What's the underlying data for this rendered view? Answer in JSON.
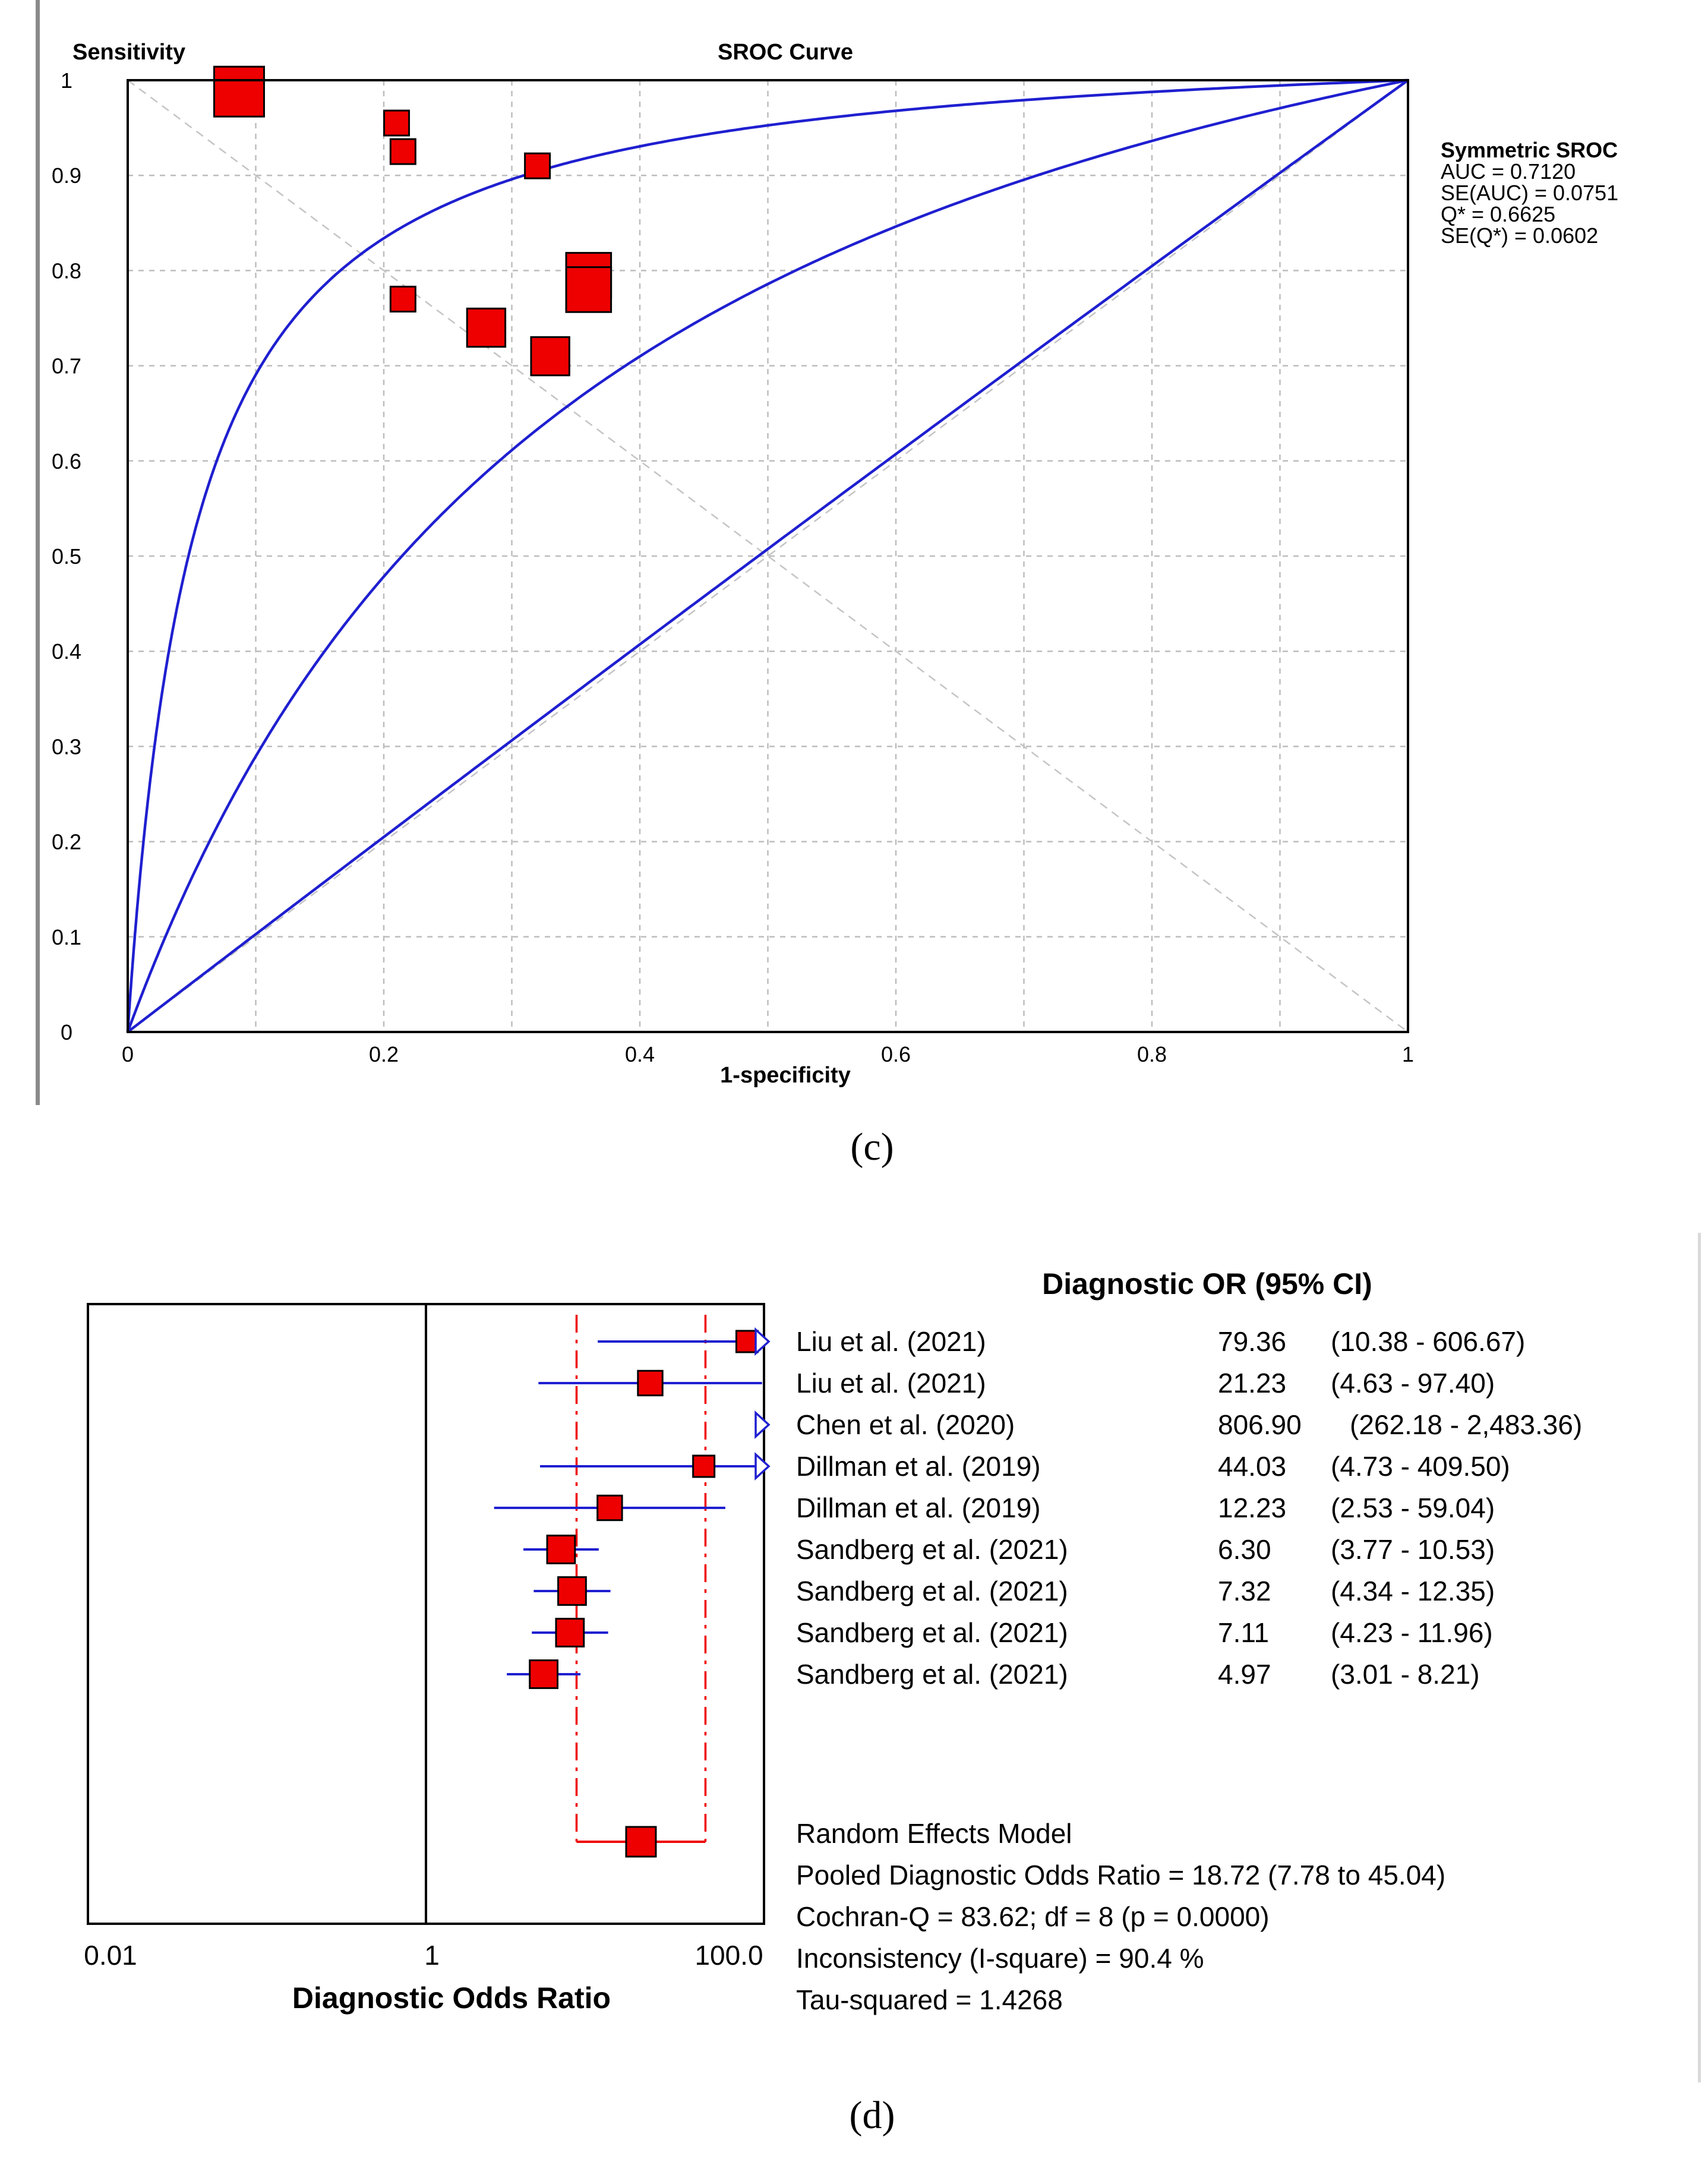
{
  "chart_data": [
    {
      "type": "scatter",
      "title": "SROC Curve",
      "ylabel": "Sensitivity",
      "xlabel": "1-specificity",
      "xlim": [
        0,
        1
      ],
      "ylim": [
        0,
        1
      ],
      "grid": true,
      "xticks": [
        "0",
        "0.2",
        "0.4",
        "0.6",
        "0.8",
        "1"
      ],
      "yticks": [
        "0",
        "0.1",
        "0.2",
        "0.3",
        "0.4",
        "0.5",
        "0.6",
        "0.7",
        "0.8",
        "0.9",
        "1"
      ],
      "points": [
        {
          "x": 0.087,
          "y": 0.988,
          "weight": 3
        },
        {
          "x": 0.21,
          "y": 0.955,
          "weight": 1.5
        },
        {
          "x": 0.215,
          "y": 0.925,
          "weight": 1.5
        },
        {
          "x": 0.32,
          "y": 0.91,
          "weight": 1.5
        },
        {
          "x": 0.215,
          "y": 0.77,
          "weight": 1.5
        },
        {
          "x": 0.28,
          "y": 0.74,
          "weight": 2.3
        },
        {
          "x": 0.33,
          "y": 0.71,
          "weight": 2.3
        },
        {
          "x": 0.36,
          "y": 0.795,
          "weight": 2.7
        },
        {
          "x": 0.36,
          "y": 0.78,
          "weight": 2.7
        }
      ],
      "curves": [
        {
          "name": "Upper CI",
          "log_dor": 3.0
        },
        {
          "name": "Symmetric SROC",
          "log_dor": 1.3
        },
        {
          "name": "Lower CI",
          "log_dor": 0.03
        }
      ],
      "annotation": {
        "heading": "Symmetric SROC",
        "lines": [
          "AUC = 0.7120",
          "SE(AUC) = 0.0751",
          "Q* = 0.6625",
          "SE(Q*) = 0.0602"
        ]
      },
      "caption": "(c)"
    },
    {
      "type": "forest",
      "xlabel": "Diagnostic Odds Ratio",
      "header": "Diagnostic OR (95% CI)",
      "xscale": "log",
      "xlim": [
        0.01,
        100
      ],
      "xticks": [
        "0.01",
        "1",
        "100.0"
      ],
      "studies": [
        {
          "name": "Liu et al. (2021)",
          "or": 79.36,
          "lo": 10.38,
          "hi": 606.67,
          "or_text": "79.36",
          "ci_text": "(10.38 - 606.67)",
          "weight": 2.0
        },
        {
          "name": "Liu et al. (2021)",
          "or": 21.23,
          "lo": 4.63,
          "hi": 97.4,
          "or_text": "21.23",
          "ci_text": "(4.63 - 97.40)",
          "weight": 2.3
        },
        {
          "name": "Chen et al. (2020)",
          "or": 806.9,
          "lo": 262.18,
          "hi": 2483.36,
          "or_text": "806.90",
          "ci_text": "(262.18 - 2,483.36)",
          "weight": 2.0
        },
        {
          "name": "Dillman et al. (2019)",
          "or": 44.03,
          "lo": 4.73,
          "hi": 409.5,
          "or_text": "44.03",
          "ci_text": "(4.73 - 409.50)",
          "weight": 2.0
        },
        {
          "name": "Dillman et al. (2019)",
          "or": 12.23,
          "lo": 2.53,
          "hi": 59.04,
          "or_text": "12.23",
          "ci_text": "(2.53 - 59.04)",
          "weight": 2.3
        },
        {
          "name": "Sandberg et al. (2021)",
          "or": 6.3,
          "lo": 3.77,
          "hi": 10.53,
          "or_text": "6.30",
          "ci_text": "(3.77 - 10.53)",
          "weight": 2.6
        },
        {
          "name": "Sandberg et al. (2021)",
          "or": 7.32,
          "lo": 4.34,
          "hi": 12.35,
          "or_text": "7.32",
          "ci_text": "(4.34 - 12.35)",
          "weight": 2.6
        },
        {
          "name": "Sandberg et al. (2021)",
          "or": 7.11,
          "lo": 4.23,
          "hi": 11.96,
          "or_text": "7.11",
          "ci_text": "(4.23 - 11.96)",
          "weight": 2.6
        },
        {
          "name": "Sandberg et al. (2021)",
          "or": 4.97,
          "lo": 3.01,
          "hi": 8.21,
          "or_text": "4.97",
          "ci_text": "(3.01 - 8.21)",
          "weight": 2.6
        }
      ],
      "pooled": {
        "or": 18.72,
        "lo": 7.78,
        "hi": 45.04
      },
      "summary": {
        "model": "Random Effects Model",
        "pooled_text": "Pooled Diagnostic Odds Ratio = 18.72 (7.78 to 45.04)",
        "cochran_text": "Cochran-Q = 83.62; df = 8 (p = 0.0000)",
        "inconsistency_text": "Inconsistency (I-square) = 90.4 %",
        "tau_text": "Tau-squared = 1.4268"
      },
      "caption": "(d)"
    }
  ]
}
